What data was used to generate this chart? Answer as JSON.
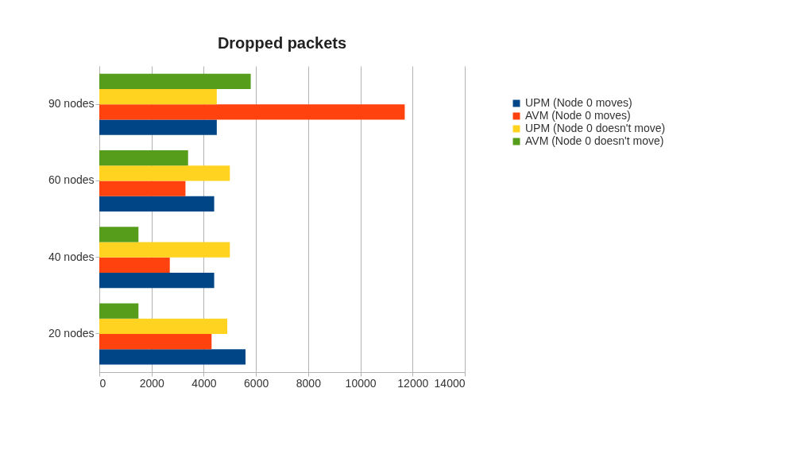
{
  "chart_data": {
    "type": "bar",
    "orientation": "horizontal",
    "title": "Dropped packets",
    "categories": [
      "90 nodes",
      "60 nodes",
      "40 nodes",
      "20 nodes"
    ],
    "series": [
      {
        "name": "UPM (Node 0 moves)",
        "color": "#004586",
        "values": [
          4500,
          4400,
          4400,
          5600
        ]
      },
      {
        "name": "AVM (Node 0 moves)",
        "color": "#ff420e",
        "values": [
          11700,
          3300,
          2700,
          4300
        ]
      },
      {
        "name": "UPM (Node 0 doesn't move)",
        "color": "#ffd320",
        "values": [
          4500,
          5000,
          5000,
          4900
        ]
      },
      {
        "name": "AVM (Node 0 doesn't move)",
        "color": "#579d1c",
        "values": [
          5800,
          3400,
          1500,
          1500
        ]
      }
    ],
    "xlim": [
      0,
      14000
    ],
    "xticks": [
      0,
      2000,
      4000,
      6000,
      8000,
      10000,
      12000,
      14000
    ],
    "grid": "x",
    "legend": "right"
  }
}
